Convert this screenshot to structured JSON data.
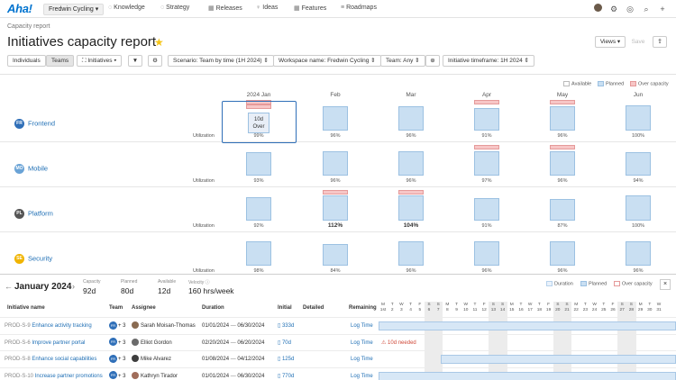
{
  "nav": {
    "logo": "Aha!",
    "workspace": "Fredwin Cycling ▾",
    "items": [
      {
        "icon": "◌",
        "label": "Knowledge"
      },
      {
        "icon": "◌",
        "label": "Strategy"
      },
      {
        "icon": "▦",
        "label": "Releases"
      },
      {
        "icon": "♀",
        "label": "Ideas"
      },
      {
        "icon": "▦",
        "label": "Features"
      },
      {
        "icon": "≡",
        "label": "Roadmaps"
      }
    ],
    "right_icons": [
      "avatar",
      "gear-icon",
      "help-icon",
      "search-icon",
      "plus-icon"
    ]
  },
  "header": {
    "breadcrumb": "Capacity report",
    "title": "Initiatives capacity report",
    "views": "Views ▾",
    "save": "Save",
    "share": "⇪"
  },
  "toolbar": {
    "individuals": "Individuals",
    "teams": "Teams",
    "initiatives": "Initiatives ▾",
    "filter": "▼",
    "settings": "⚙",
    "scenario": "Scenario: Team by time (1H 2024) ⇕",
    "workspace": "Workspace name: Fredwin Cycling ⇕",
    "team": "Team: Any ⇕",
    "add": "⊕",
    "timeframe": "Initiative timeframe: 1H 2024 ⇕"
  },
  "legend": {
    "available": "Available",
    "planned": "Planned",
    "over": "Over capacity"
  },
  "colors": {
    "planned": "#c9dff2",
    "over": "#f7c6c6",
    "accent": "#1f6fb5"
  },
  "chart_data": {
    "type": "bar",
    "categories": [
      "2024 Jan",
      "Feb",
      "Mar",
      "Apr",
      "May",
      "Jun"
    ],
    "series": [
      {
        "name": "Frontend",
        "avatar": "FR",
        "values": [
          99,
          96,
          96,
          91,
          96,
          100
        ]
      },
      {
        "name": "Mobile",
        "avatar": "MO",
        "values": [
          93,
          96,
          96,
          97,
          96,
          94
        ]
      },
      {
        "name": "Platform",
        "avatar": "PL",
        "values": [
          92,
          112,
          104,
          91,
          87,
          100
        ]
      },
      {
        "name": "Security",
        "avatar": "SE",
        "values": [
          98,
          84,
          96,
          96,
          96,
          96
        ]
      }
    ],
    "util_labels": [
      [
        "99%",
        "96%",
        "96%",
        "91%",
        "96%",
        "100%"
      ],
      [
        "93%",
        "96%",
        "96%",
        "97%",
        "96%",
        "94%"
      ],
      [
        "92%",
        "112%",
        "104%",
        "91%",
        "87%",
        "100%"
      ],
      [
        "98%",
        "84%",
        "96%",
        "96%",
        "96%",
        "96%"
      ]
    ],
    "over_marks": [
      [
        1,
        0,
        0,
        1,
        1,
        0
      ],
      [
        0,
        0,
        0,
        1,
        1,
        0
      ],
      [
        0,
        1,
        1,
        0,
        0,
        0
      ],
      [
        0,
        0,
        0,
        0,
        0,
        0
      ]
    ],
    "row_label": "Utilization",
    "selected_cell": {
      "line1": "10d",
      "line2": "Over"
    }
  },
  "detail": {
    "month": "January 2024",
    "stats": [
      {
        "label": "Capacity",
        "value": "92d"
      },
      {
        "label": "Planned",
        "value": "80d"
      },
      {
        "label": "Available",
        "value": "12d"
      },
      {
        "label": "Velocity ⓘ",
        "value": "160 hrs/week"
      }
    ],
    "legend": {
      "duration": "Duration",
      "planned": "Planned",
      "over": "Over capacity"
    },
    "close": "×",
    "columns": [
      "Initiative name",
      "Team",
      "Assignee",
      "Duration",
      "Initial",
      "Detailed",
      "Remaining"
    ],
    "days": [
      [
        "M",
        "1st"
      ],
      [
        "T",
        "2"
      ],
      [
        "W",
        "3"
      ],
      [
        "T",
        "4"
      ],
      [
        "F",
        "5"
      ],
      [
        "S",
        "6"
      ],
      [
        "S",
        "7"
      ],
      [
        "M",
        "8"
      ],
      [
        "T",
        "9"
      ],
      [
        "W",
        "10"
      ],
      [
        "T",
        "11"
      ],
      [
        "F",
        "12"
      ],
      [
        "S",
        "13"
      ],
      [
        "S",
        "14"
      ],
      [
        "M",
        "15"
      ],
      [
        "T",
        "16"
      ],
      [
        "W",
        "17"
      ],
      [
        "T",
        "18"
      ],
      [
        "F",
        "19"
      ],
      [
        "S",
        "20"
      ],
      [
        "S",
        "21"
      ],
      [
        "M",
        "22"
      ],
      [
        "T",
        "23"
      ],
      [
        "W",
        "24"
      ],
      [
        "T",
        "25"
      ],
      [
        "F",
        "26"
      ],
      [
        "S",
        "27"
      ],
      [
        "S",
        "28"
      ],
      [
        "M",
        "29"
      ],
      [
        "T",
        "30"
      ],
      [
        "W",
        "31"
      ]
    ],
    "rows": [
      {
        "id": "PROD-S-9",
        "name": "Enhance activity tracking",
        "team": "+ 3",
        "assignee": "Sarah Moisan-Thomas",
        "start": "01/01/2024",
        "end": "06/30/2024",
        "initial": "▯ 333d",
        "remaining": "Log Time",
        "note": ""
      },
      {
        "id": "PROD-S-6",
        "name": "Improve partner portal",
        "team": "+ 3",
        "assignee": "Elliot Gordon",
        "start": "02/20/2024",
        "end": "06/20/2024",
        "initial": "▯ 70d",
        "remaining": "Log Time",
        "note": "⚠ 10d needed"
      },
      {
        "id": "PROD-S-8",
        "name": "Enhance social capabilities",
        "team": "+ 3",
        "assignee": "Mike Alvarez",
        "start": "01/08/2024",
        "end": "04/12/2024",
        "initial": "▯ 125d",
        "remaining": "Log Time",
        "note": ""
      },
      {
        "id": "PROD-S-10",
        "name": "Increase partner promotions",
        "team": "+ 3",
        "assignee": "Kathryn Tirador",
        "start": "01/01/2024",
        "end": "06/30/2024",
        "initial": "▯ 770d",
        "remaining": "Log Time",
        "note": ""
      }
    ]
  }
}
